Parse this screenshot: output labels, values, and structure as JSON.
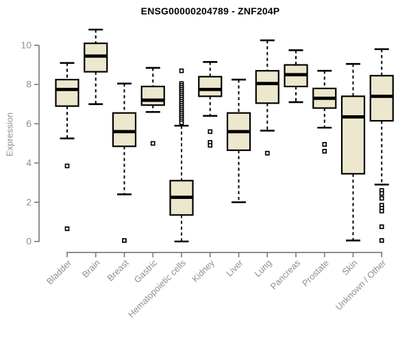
{
  "chart": {
    "title": "ENSG00000204789 - ZNF204P",
    "y_axis_label": "Expression"
  },
  "chart_data": {
    "type": "boxplot",
    "title": "ENSG00000204789 - ZNF204P",
    "xlabel": "",
    "ylabel": "Expression",
    "ylim": [
      0,
      11
    ],
    "yticks": [
      0,
      2,
      4,
      6,
      8,
      10
    ],
    "grid": false,
    "legend": "none",
    "categories": [
      "Bladder",
      "Brain",
      "Breast",
      "Gastric",
      "Hematopoietic cells",
      "Kidney",
      "Liver",
      "Lung",
      "Pancreas",
      "Prostate",
      "Skin",
      "Unknown / Other"
    ],
    "boxes": [
      {
        "category": "Bladder",
        "whisker_low": 5.25,
        "q1": 6.9,
        "median": 7.75,
        "q3": 8.25,
        "whisker_high": 9.1,
        "outliers": [
          3.85,
          0.65
        ]
      },
      {
        "category": "Brain",
        "whisker_low": 7.0,
        "q1": 8.65,
        "median": 9.45,
        "q3": 10.1,
        "whisker_high": 10.8,
        "outliers": []
      },
      {
        "category": "Breast",
        "whisker_low": 2.4,
        "q1": 4.85,
        "median": 5.6,
        "q3": 6.55,
        "whisker_high": 8.05,
        "outliers": [
          0.05
        ]
      },
      {
        "category": "Gastric",
        "whisker_low": 6.6,
        "q1": 6.95,
        "median": 7.2,
        "q3": 7.9,
        "whisker_high": 8.85,
        "outliers": [
          5.0
        ]
      },
      {
        "category": "Hematopoietic cells",
        "whisker_low": 0.0,
        "q1": 1.35,
        "median": 2.25,
        "q3": 3.1,
        "whisker_high": 5.9,
        "outliers": [
          8.7,
          8.05,
          7.95,
          7.85,
          7.75,
          7.65,
          7.55,
          7.45,
          7.35,
          7.25,
          7.15,
          7.05,
          6.95,
          6.85,
          6.75,
          6.65,
          6.55,
          6.45,
          6.35,
          6.25,
          6.15,
          6.05
        ]
      },
      {
        "category": "Kidney",
        "whisker_low": 6.4,
        "q1": 7.4,
        "median": 7.75,
        "q3": 8.4,
        "whisker_high": 9.15,
        "outliers": [
          5.6,
          5.05,
          4.9
        ]
      },
      {
        "category": "Liver",
        "whisker_low": 2.0,
        "q1": 4.65,
        "median": 5.6,
        "q3": 6.55,
        "whisker_high": 8.25,
        "outliers": []
      },
      {
        "category": "Lung",
        "whisker_low": 5.65,
        "q1": 7.05,
        "median": 8.05,
        "q3": 8.7,
        "whisker_high": 10.25,
        "outliers": [
          4.5
        ]
      },
      {
        "category": "Pancreas",
        "whisker_low": 7.1,
        "q1": 7.9,
        "median": 8.5,
        "q3": 9.0,
        "whisker_high": 9.75,
        "outliers": []
      },
      {
        "category": "Prostate",
        "whisker_low": 5.8,
        "q1": 6.8,
        "median": 7.3,
        "q3": 7.8,
        "whisker_high": 8.7,
        "outliers": [
          4.95,
          4.6
        ]
      },
      {
        "category": "Skin",
        "whisker_low": 0.05,
        "q1": 3.45,
        "median": 6.35,
        "q3": 7.4,
        "whisker_high": 9.05,
        "outliers": []
      },
      {
        "category": "Unknown / Other",
        "whisker_low": 2.9,
        "q1": 6.15,
        "median": 7.4,
        "q3": 8.45,
        "whisker_high": 9.8,
        "outliers": [
          2.6,
          2.45,
          2.2,
          1.85,
          1.7,
          1.55,
          0.75,
          0.05
        ]
      }
    ],
    "colors": {
      "box_fill": "#ece7cd",
      "box_border": "#000000",
      "median": "#000000",
      "whisker": "#000000",
      "outlier": "#000000",
      "axis": "#7d7d7d",
      "tick_label": "#8f8f8f",
      "title": "#000000"
    }
  }
}
